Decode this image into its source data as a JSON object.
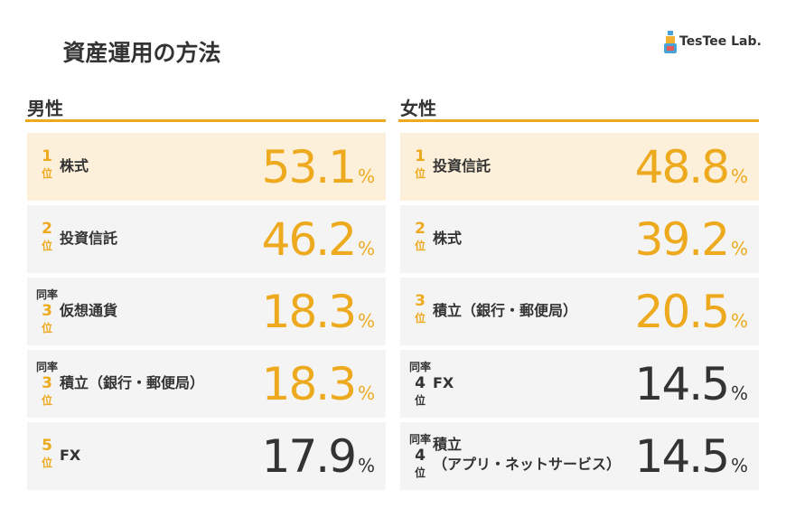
{
  "title": "資産運用の方法",
  "brand": "TesTee Lab.",
  "rank_suffix": "位",
  "tie_label": "同率",
  "unit": "%",
  "colors": {
    "accent": "#eeaa1e",
    "plain": "#333333",
    "top_bg": "#fdf0da",
    "row_bg": "#f4f4f4",
    "title_bg": "#fdefd6"
  },
  "sections": [
    {
      "heading": "男性",
      "rows": [
        {
          "rank": 1,
          "tie": false,
          "name": [
            "株式"
          ],
          "value": 53.1,
          "style": "top"
        },
        {
          "rank": 2,
          "tie": false,
          "name": [
            "投資信託"
          ],
          "value": 46.2,
          "style": "accent"
        },
        {
          "rank": 3,
          "tie": true,
          "name": [
            "仮想通貨"
          ],
          "value": 18.3,
          "style": "accent"
        },
        {
          "rank": 3,
          "tie": true,
          "name": [
            "積立（銀行・郵便局）"
          ],
          "value": 18.3,
          "style": "accent"
        },
        {
          "rank": 5,
          "tie": false,
          "name": [
            "FX"
          ],
          "value": 17.9,
          "style": "plain"
        }
      ]
    },
    {
      "heading": "女性",
      "rows": [
        {
          "rank": 1,
          "tie": false,
          "name": [
            "投資信託"
          ],
          "value": 48.8,
          "style": "top"
        },
        {
          "rank": 2,
          "tie": false,
          "name": [
            "株式"
          ],
          "value": 39.2,
          "style": "accent"
        },
        {
          "rank": 3,
          "tie": false,
          "name": [
            "積立（銀行・郵便局）"
          ],
          "value": 20.5,
          "style": "accent"
        },
        {
          "rank": 4,
          "tie": true,
          "name": [
            "FX"
          ],
          "value": 14.5,
          "style": "plain"
        },
        {
          "rank": 4,
          "tie": true,
          "name": [
            "積立",
            "（アプリ・ネットサービス）"
          ],
          "value": 14.5,
          "style": "plain"
        }
      ]
    }
  ]
}
